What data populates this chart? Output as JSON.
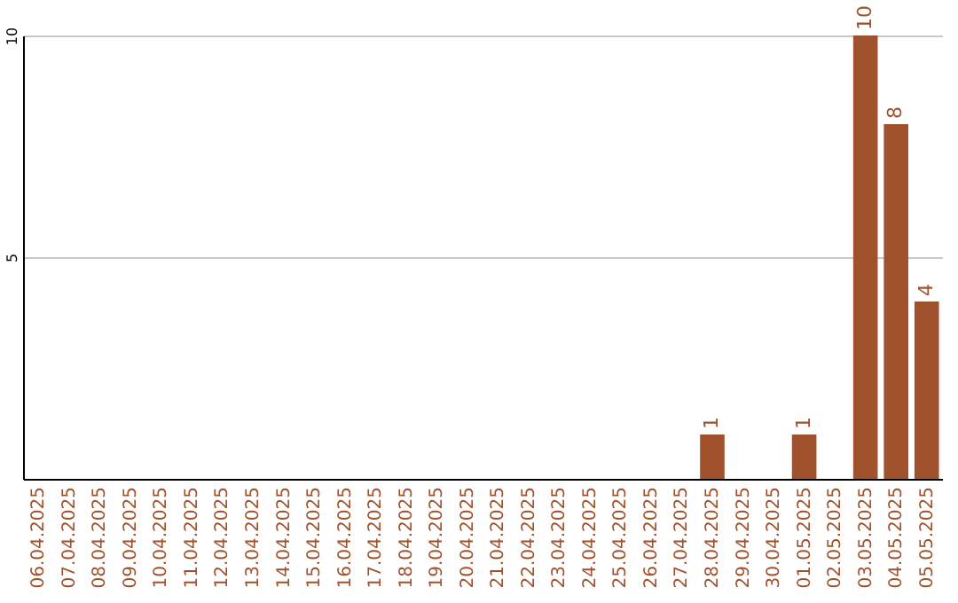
{
  "chart_data": {
    "type": "bar",
    "categories": [
      "06.04.2025",
      "07.04.2025",
      "08.04.2025",
      "09.04.2025",
      "10.04.2025",
      "11.04.2025",
      "12.04.2025",
      "13.04.2025",
      "14.04.2025",
      "15.04.2025",
      "16.04.2025",
      "17.04.2025",
      "18.04.2025",
      "19.04.2025",
      "20.04.2025",
      "21.04.2025",
      "22.04.2025",
      "23.04.2025",
      "24.04.2025",
      "25.04.2025",
      "26.04.2025",
      "27.04.2025",
      "28.04.2025",
      "29.04.2025",
      "30.04.2025",
      "01.05.2025",
      "02.05.2025",
      "03.05.2025",
      "04.05.2025",
      "05.05.2025"
    ],
    "values": [
      0,
      0,
      0,
      0,
      0,
      0,
      0,
      0,
      0,
      0,
      0,
      0,
      0,
      0,
      0,
      0,
      0,
      0,
      0,
      0,
      0,
      0,
      1,
      0,
      0,
      1,
      0,
      10,
      8,
      4
    ],
    "value_labels": [
      null,
      null,
      null,
      null,
      null,
      null,
      null,
      null,
      null,
      null,
      null,
      null,
      null,
      null,
      null,
      null,
      null,
      null,
      null,
      null,
      null,
      null,
      "1",
      null,
      null,
      "1",
      null,
      "10",
      "8",
      "4"
    ],
    "color": "#a0522d",
    "ylim": [
      0,
      10
    ],
    "yticks": [
      5,
      10
    ],
    "grid": "y"
  }
}
